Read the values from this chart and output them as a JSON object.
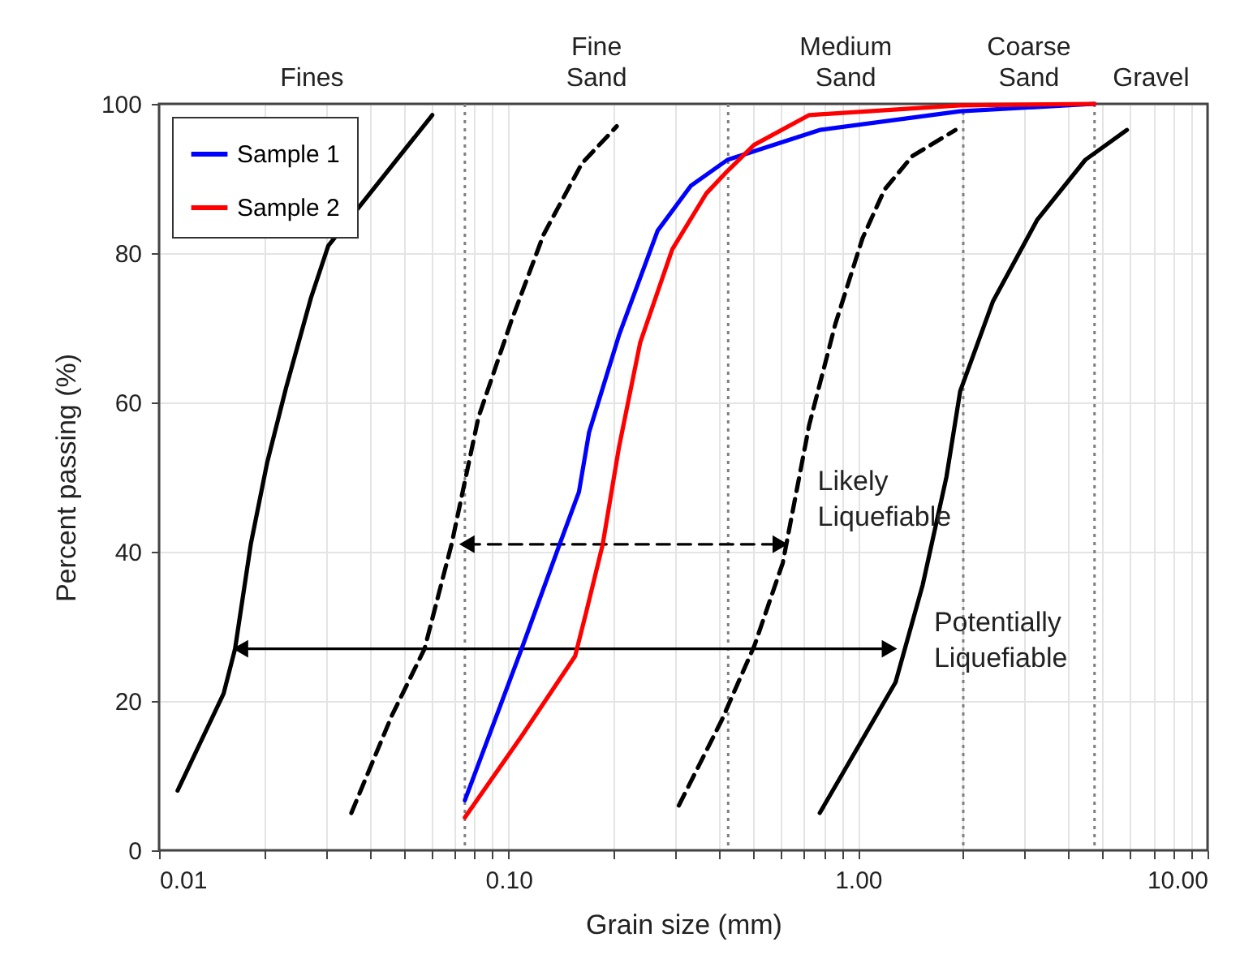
{
  "chart_data": {
    "type": "line",
    "xlabel": "Grain size (mm)",
    "ylabel": "Percent passing (%)",
    "log": "x",
    "xlim": [
      0.01,
      10
    ],
    "xticks": [
      {
        "value": 0.01,
        "label": "0.01"
      },
      {
        "value": 0.02,
        "label": null
      },
      {
        "value": 0.03,
        "label": null
      },
      {
        "value": 0.04,
        "label": null
      },
      {
        "value": 0.05,
        "label": null
      },
      {
        "value": 0.06,
        "label": null
      },
      {
        "value": 0.07,
        "label": null
      },
      {
        "value": 0.08,
        "label": null
      },
      {
        "value": 0.09,
        "label": null
      },
      {
        "value": 0.1,
        "label": "0.10"
      },
      {
        "value": 0.2,
        "label": null
      },
      {
        "value": 0.3,
        "label": null
      },
      {
        "value": 0.4,
        "label": null
      },
      {
        "value": 0.5,
        "label": null
      },
      {
        "value": 0.6,
        "label": null
      },
      {
        "value": 0.7,
        "label": null
      },
      {
        "value": 0.8,
        "label": null
      },
      {
        "value": 0.9,
        "label": null
      },
      {
        "value": 1,
        "label": "1.00"
      },
      {
        "value": 2,
        "label": null
      },
      {
        "value": 3,
        "label": null
      },
      {
        "value": 4,
        "label": null
      },
      {
        "value": 5,
        "label": null
      },
      {
        "value": 6,
        "label": null
      },
      {
        "value": 7,
        "label": null
      },
      {
        "value": 8,
        "label": null
      },
      {
        "value": 9,
        "label": null
      },
      {
        "value": 10,
        "label": "10.00"
      }
    ],
    "ylim": [
      0,
      100
    ],
    "yticks": [
      0,
      20,
      40,
      60,
      80,
      100
    ],
    "grid": true,
    "legend": "top left",
    "series": [
      {
        "name": "Sample 1",
        "color": "#0000ff",
        "x": [
          0.075,
          0.109,
          0.14,
          0.159,
          0.17,
          0.207,
          0.267,
          0.332,
          0.423,
          0.777,
          1.96,
          4.75
        ],
        "values": [
          6.7,
          27,
          41,
          48,
          56,
          69,
          83,
          89,
          92.5,
          96.5,
          99,
          100
        ]
      },
      {
        "name": "Sample 2",
        "color": "#ff0000",
        "x": [
          0.075,
          0.109,
          0.155,
          0.167,
          0.186,
          0.207,
          0.238,
          0.294,
          0.368,
          0.423,
          0.504,
          0.725,
          1.96,
          4.75
        ],
        "values": [
          4.4,
          15.3,
          26,
          32,
          41,
          54,
          68,
          80.5,
          88,
          91,
          94.5,
          98.5,
          99.8,
          100
        ]
      },
      {
        "color": "#000000",
        "x": [
          0.0113,
          0.0153,
          0.0165,
          0.0183,
          0.0204,
          0.0231,
          0.0272,
          0.0305,
          0.0605
        ],
        "values": [
          8,
          21,
          27,
          41,
          52,
          62,
          74,
          81,
          98.5
        ]
      },
      {
        "color": "#000000",
        "line_style": "dashed",
        "x": [
          0.0355,
          0.0463,
          0.0575,
          0.0687,
          0.082,
          0.102,
          0.126,
          0.162,
          0.204
        ],
        "values": [
          5,
          18,
          27,
          41,
          58,
          71,
          82.5,
          92,
          97
        ]
      },
      {
        "color": "#000000",
        "line_style": "dashed",
        "x": [
          0.307,
          0.408,
          0.506,
          0.609,
          0.725,
          0.861,
          1.03,
          1.19,
          1.43,
          1.9
        ],
        "values": [
          6,
          17.5,
          27.5,
          38.5,
          57,
          70.5,
          82,
          88.5,
          93,
          96.5
        ]
      },
      {
        "color": "#000000",
        "x": [
          0.777,
          1.28,
          1.53,
          1.79,
          1.96,
          2.43,
          3.26,
          4.47,
          5.88
        ],
        "values": [
          5,
          22.5,
          35.5,
          50,
          61.5,
          73.5,
          84.5,
          92.5,
          96.5
        ]
      },
      {
        "color": "#000000",
        "line_style": "dashed",
        "marker": "triangle",
        "x": [
          0.076,
          0.599
        ],
        "values": [
          41,
          41
        ]
      },
      {
        "color": "#000000",
        "marker": "triangle",
        "x": [
          0.0171,
          1.23
        ],
        "values": [
          27,
          27
        ]
      }
    ],
    "ref_lines": [
      {
        "axis": "x",
        "value": 0.075,
        "color": "#7f7f7f",
        "line_style": "dotted"
      },
      {
        "axis": "x",
        "value": 0.425,
        "color": "#7f7f7f",
        "line_style": "dotted"
      },
      {
        "axis": "x",
        "value": 2,
        "color": "#7f7f7f",
        "line_style": "dotted"
      },
      {
        "axis": "x",
        "value": 4.75,
        "color": "#7f7f7f",
        "line_style": "dotted"
      }
    ],
    "annotations": [
      "Fines",
      "Fine\nSand",
      "Medium\nSand",
      "Coarse\nSand",
      "Gravel",
      {
        "text": "Likely\nLiquefiable",
        "x": 0.66,
        "y": 47
      },
      {
        "text": "Potentially\nLiquefiable",
        "x": 1.42,
        "y": 28
      }
    ]
  }
}
